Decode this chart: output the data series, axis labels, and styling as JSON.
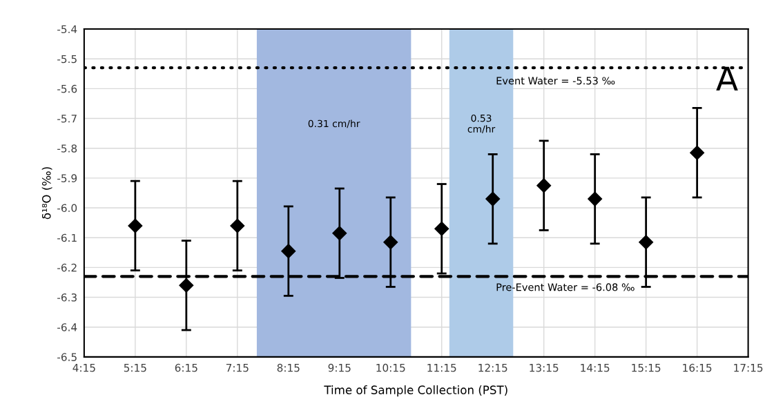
{
  "chart_data": {
    "type": "scatter",
    "xlabel": "Time of Sample Collection (PST)",
    "ylabel": "δ¹⁸O (‰)",
    "x": [
      5.25,
      6.25,
      7.25,
      8.25,
      9.25,
      10.25,
      11.25,
      12.25,
      13.25,
      14.25,
      15.25,
      16.25
    ],
    "series": [
      {
        "color": "#000000",
        "values": [
          -6.06,
          -6.26,
          -6.06,
          -6.145,
          -6.085,
          -6.115,
          -6.07,
          -5.97,
          -5.925,
          -5.97,
          -6.115,
          -5.815
        ],
        "errors": [
          0.15,
          0.15,
          0.15,
          0.15,
          0.15,
          0.15,
          0.15,
          0.15,
          0.15,
          0.15,
          0.15,
          0.15
        ]
      }
    ],
    "marker": "diamond",
    "xlim": [
      4.25,
      17.25
    ],
    "xticks": [
      {
        "value": 4.25,
        "label": "4:15"
      },
      {
        "value": 5.25,
        "label": "5:15"
      },
      {
        "value": 6.25,
        "label": "6:15"
      },
      {
        "value": 7.25,
        "label": "7:15"
      },
      {
        "value": 8.25,
        "label": "8:15"
      },
      {
        "value": 9.25,
        "label": "9:15"
      },
      {
        "value": 10.25,
        "label": "10:15"
      },
      {
        "value": 11.25,
        "label": "11:15"
      },
      {
        "value": 12.25,
        "label": "12:15"
      },
      {
        "value": 13.25,
        "label": "13:15"
      },
      {
        "value": 14.25,
        "label": "14:15"
      },
      {
        "value": 15.25,
        "label": "15:15"
      },
      {
        "value": 16.25,
        "label": "16:15"
      },
      {
        "value": 17.25,
        "label": "17:15"
      }
    ],
    "ylim": [
      -6.5,
      -5.4
    ],
    "yticks": [
      -6.5,
      -6.4,
      -6.3,
      -6.2,
      -6.1,
      {
        "value": -6.0,
        "label": "-6.0"
      },
      -5.9,
      -5.8,
      -5.7,
      -5.6,
      -5.5,
      -5.4
    ],
    "grid": true,
    "ref_lines": [
      {
        "axis": "y",
        "value": -5.53,
        "label": "Event Water = -5.53 ‰",
        "color": "#000000",
        "line_style": "dotted"
      },
      {
        "axis": "y",
        "value": -6.23,
        "color": "#000000",
        "line_style": "dashed"
      }
    ],
    "bands": [
      {
        "axis": "x",
        "from": 7.63,
        "to": 10.65,
        "label": "0.31 cm/hr",
        "color": "#a2b8e0"
      },
      {
        "axis": "x",
        "from": 11.4,
        "to": 12.65,
        "label": "0.53\ncm/hr",
        "color": "#aecbe8"
      }
    ],
    "annotations": [
      "Pre-Event Water = -6.08 ‰",
      "A"
    ]
  }
}
